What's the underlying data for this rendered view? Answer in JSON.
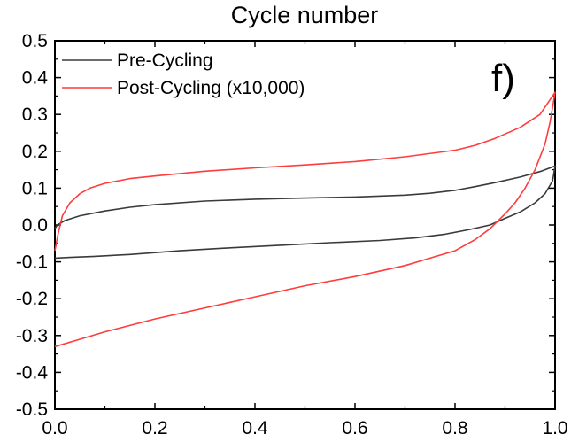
{
  "chart_data": {
    "type": "line",
    "title": "Cycle number",
    "panel_label": "f)",
    "xlabel": "",
    "ylabel": "",
    "xlim": [
      0.0,
      1.0
    ],
    "ylim": [
      -0.5,
      0.5
    ],
    "x_ticks": [
      0.0,
      0.2,
      0.4,
      0.6,
      0.8,
      1.0
    ],
    "x_tick_labels": [
      "0.0",
      "0.2",
      "0.4",
      "0.6",
      "0.8",
      "1.0"
    ],
    "y_ticks": [
      0.5,
      0.4,
      0.3,
      0.2,
      0.1,
      0.0,
      -0.1,
      -0.2,
      -0.3,
      -0.4,
      -0.5
    ],
    "y_tick_labels": [
      "0.5",
      "0.4",
      "0.3",
      "0.2",
      "0.1",
      "0.0",
      "-0.1",
      "-0.2",
      "-0.3",
      "-0.4",
      "-0.5"
    ],
    "grid": false,
    "legend_position": "top-left",
    "series": [
      {
        "name": "Pre-Cycling",
        "color": "#3a3a3a",
        "points": [
          [
            0.0,
            -0.09
          ],
          [
            0.03,
            -0.088
          ],
          [
            0.08,
            -0.085
          ],
          [
            0.15,
            -0.08
          ],
          [
            0.25,
            -0.07
          ],
          [
            0.35,
            -0.062
          ],
          [
            0.45,
            -0.055
          ],
          [
            0.55,
            -0.048
          ],
          [
            0.65,
            -0.042
          ],
          [
            0.72,
            -0.035
          ],
          [
            0.78,
            -0.025
          ],
          [
            0.83,
            -0.012
          ],
          [
            0.87,
            0.0
          ],
          [
            0.9,
            0.018
          ],
          [
            0.93,
            0.035
          ],
          [
            0.96,
            0.06
          ],
          [
            0.98,
            0.085
          ],
          [
            0.995,
            0.12
          ],
          [
            1.0,
            0.16
          ],
          [
            0.97,
            0.145
          ],
          [
            0.93,
            0.13
          ],
          [
            0.88,
            0.115
          ],
          [
            0.84,
            0.104
          ],
          [
            0.8,
            0.094
          ],
          [
            0.75,
            0.086
          ],
          [
            0.7,
            0.081
          ],
          [
            0.6,
            0.076
          ],
          [
            0.5,
            0.073
          ],
          [
            0.4,
            0.07
          ],
          [
            0.3,
            0.065
          ],
          [
            0.2,
            0.055
          ],
          [
            0.15,
            0.048
          ],
          [
            0.1,
            0.038
          ],
          [
            0.05,
            0.025
          ],
          [
            0.02,
            0.012
          ],
          [
            0.005,
            0.0
          ],
          [
            0.0,
            -0.01
          ]
        ]
      },
      {
        "name": "Post-Cycling (x10,000)",
        "color": "#ff3b3b",
        "points": [
          [
            0.0,
            -0.33
          ],
          [
            0.05,
            -0.31
          ],
          [
            0.1,
            -0.29
          ],
          [
            0.2,
            -0.255
          ],
          [
            0.3,
            -0.225
          ],
          [
            0.4,
            -0.195
          ],
          [
            0.5,
            -0.165
          ],
          [
            0.6,
            -0.14
          ],
          [
            0.7,
            -0.11
          ],
          [
            0.75,
            -0.09
          ],
          [
            0.8,
            -0.07
          ],
          [
            0.84,
            -0.04
          ],
          [
            0.87,
            -0.01
          ],
          [
            0.9,
            0.03
          ],
          [
            0.92,
            0.06
          ],
          [
            0.94,
            0.1
          ],
          [
            0.96,
            0.15
          ],
          [
            0.98,
            0.22
          ],
          [
            0.99,
            0.28
          ],
          [
            1.0,
            0.36
          ],
          [
            0.97,
            0.3
          ],
          [
            0.93,
            0.265
          ],
          [
            0.88,
            0.235
          ],
          [
            0.84,
            0.216
          ],
          [
            0.8,
            0.203
          ],
          [
            0.7,
            0.185
          ],
          [
            0.6,
            0.172
          ],
          [
            0.5,
            0.163
          ],
          [
            0.4,
            0.155
          ],
          [
            0.3,
            0.146
          ],
          [
            0.2,
            0.133
          ],
          [
            0.15,
            0.126
          ],
          [
            0.1,
            0.113
          ],
          [
            0.07,
            0.1
          ],
          [
            0.05,
            0.085
          ],
          [
            0.03,
            0.06
          ],
          [
            0.015,
            0.025
          ],
          [
            0.007,
            -0.02
          ],
          [
            0.0,
            -0.07
          ]
        ]
      }
    ]
  }
}
